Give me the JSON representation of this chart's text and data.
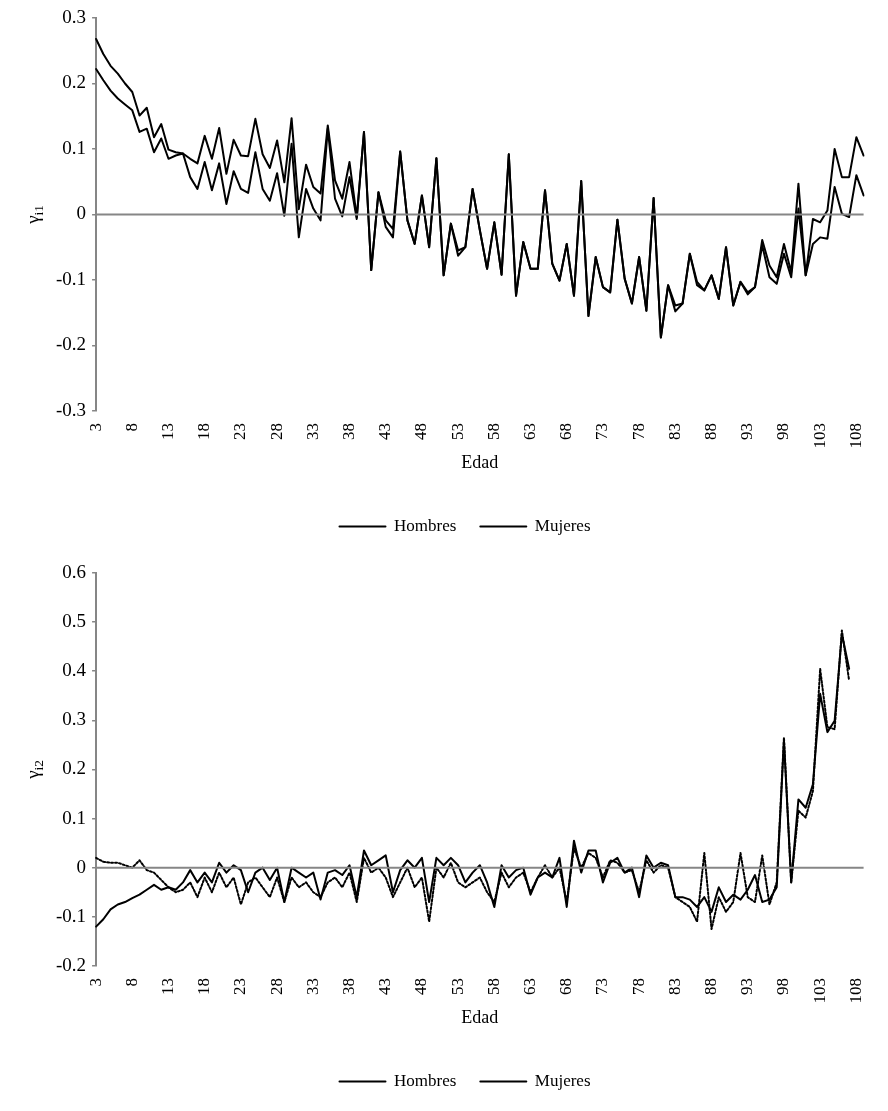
{
  "chart_data": [
    {
      "type": "line",
      "ylabel": "γ$_{i1}$",
      "xlabel": "Edad",
      "legend": "bottom",
      "grid": false,
      "ref_lines": [
        {
          "axis": "y",
          "value": 0,
          "color": "#868686"
        }
      ],
      "ylim": [
        -0.3,
        0.3
      ],
      "yticks": [
        -0.3,
        -0.2,
        -0.1,
        0,
        0.1,
        0.2,
        0.3
      ],
      "categories": [
        "3",
        null,
        null,
        null,
        null,
        "8",
        null,
        null,
        null,
        null,
        "13",
        null,
        null,
        null,
        null,
        "18",
        null,
        null,
        null,
        null,
        "23",
        null,
        null,
        null,
        null,
        "28",
        null,
        null,
        null,
        null,
        "33",
        null,
        null,
        null,
        null,
        "38",
        null,
        null,
        null,
        null,
        "43",
        null,
        null,
        null,
        null,
        "48",
        null,
        null,
        null,
        null,
        "53",
        null,
        null,
        null,
        null,
        "58",
        null,
        null,
        null,
        null,
        "63",
        null,
        null,
        null,
        null,
        "68",
        null,
        null,
        null,
        null,
        "73",
        null,
        null,
        null,
        null,
        "78",
        null,
        null,
        null,
        null,
        "83",
        null,
        null,
        null,
        null,
        "88",
        null,
        null,
        null,
        null,
        "93",
        null,
        null,
        null,
        null,
        "98",
        null,
        null,
        null,
        null,
        "103",
        null,
        null,
        null,
        null,
        "108",
        null
      ],
      "series": [
        {
          "name": "Hombres",
          "color": "#000000",
          "values": [
            0.268,
            0.245,
            0.227,
            0.215,
            0.2,
            0.187,
            0.151,
            0.163,
            0.118,
            0.138,
            0.099,
            0.095,
            0.093,
            0.085,
            0.078,
            0.12,
            0.085,
            0.132,
            0.062,
            0.114,
            0.09,
            0.089,
            0.146,
            0.092,
            0.071,
            0.113,
            0.049,
            0.147,
            0.008,
            0.076,
            0.042,
            0.032,
            0.136,
            0.052,
            0.024,
            0.08,
            -0.004,
            0.126,
            -0.085,
            0.034,
            -0.009,
            -0.022,
            0.096,
            -0.009,
            -0.045,
            0.029,
            -0.05,
            0.086,
            -0.093,
            -0.014,
            -0.055,
            -0.05,
            0.039,
            -0.024,
            -0.083,
            -0.012,
            -0.092,
            0.092,
            -0.124,
            -0.042,
            -0.083,
            -0.083,
            0.037,
            -0.075,
            -0.101,
            -0.045,
            -0.124,
            0.051,
            -0.155,
            -0.065,
            -0.111,
            -0.119,
            -0.008,
            -0.098,
            -0.136,
            -0.065,
            -0.147,
            0.025,
            -0.188,
            -0.108,
            -0.139,
            -0.136,
            -0.06,
            -0.103,
            -0.116,
            -0.093,
            -0.129,
            -0.05,
            -0.139,
            -0.103,
            -0.119,
            -0.111,
            -0.039,
            -0.078,
            -0.096,
            -0.045,
            -0.088,
            0.047,
            -0.093,
            -0.007,
            -0.012,
            0.006,
            0.1,
            0.057,
            0.057,
            0.118,
            0.09
          ]
        },
        {
          "name": "Mujeres",
          "color": "#000000",
          "values": [
            0.222,
            0.205,
            0.189,
            0.177,
            0.168,
            0.159,
            0.126,
            0.131,
            0.095,
            0.116,
            0.085,
            0.09,
            0.093,
            0.057,
            0.039,
            0.08,
            0.037,
            0.078,
            0.016,
            0.066,
            0.039,
            0.033,
            0.095,
            0.039,
            0.021,
            0.063,
            -0.002,
            0.108,
            -0.035,
            0.039,
            0.009,
            -0.009,
            0.131,
            0.024,
            -0.003,
            0.057,
            -0.007,
            0.126,
            -0.085,
            0.034,
            -0.019,
            -0.035,
            0.096,
            -0.009,
            -0.045,
            0.029,
            -0.05,
            0.086,
            -0.093,
            -0.014,
            -0.063,
            -0.05,
            0.039,
            -0.024,
            -0.083,
            -0.012,
            -0.092,
            0.092,
            -0.124,
            -0.042,
            -0.083,
            -0.083,
            0.037,
            -0.075,
            -0.101,
            -0.045,
            -0.124,
            0.051,
            -0.155,
            -0.065,
            -0.111,
            -0.119,
            -0.008,
            -0.098,
            -0.136,
            -0.065,
            -0.147,
            0.025,
            -0.188,
            -0.108,
            -0.148,
            -0.136,
            -0.06,
            -0.108,
            -0.116,
            -0.093,
            -0.129,
            -0.05,
            -0.139,
            -0.103,
            -0.122,
            -0.111,
            -0.047,
            -0.096,
            -0.106,
            -0.06,
            -0.096,
            0.009,
            -0.093,
            -0.045,
            -0.035,
            -0.037,
            0.042,
            0.001,
            -0.004,
            0.06,
            0.029
          ]
        }
      ]
    },
    {
      "type": "line",
      "ylabel": "γ$_{i2}$",
      "xlabel": "Edad",
      "legend": "bottom",
      "grid": false,
      "ref_lines": [
        {
          "axis": "y",
          "value": 0,
          "color": "#868686"
        }
      ],
      "ylim": [
        -0.2,
        0.6
      ],
      "yticks": [
        -0.2,
        -0.1,
        0,
        0.1,
        0.2,
        0.3,
        0.4,
        0.5,
        0.6
      ],
      "categories": [
        "3",
        null,
        null,
        null,
        null,
        "8",
        null,
        null,
        null,
        null,
        "13",
        null,
        null,
        null,
        null,
        "18",
        null,
        null,
        null,
        null,
        "23",
        null,
        null,
        null,
        null,
        "28",
        null,
        null,
        null,
        null,
        "33",
        null,
        null,
        null,
        null,
        "38",
        null,
        null,
        null,
        null,
        "43",
        null,
        null,
        null,
        null,
        "48",
        null,
        null,
        null,
        null,
        "53",
        null,
        null,
        null,
        null,
        "58",
        null,
        null,
        null,
        null,
        "63",
        null,
        null,
        null,
        null,
        "68",
        null,
        null,
        null,
        null,
        "73",
        null,
        null,
        null,
        null,
        "78",
        null,
        null,
        null,
        null,
        "83",
        null,
        null,
        null,
        null,
        "88",
        null,
        null,
        null,
        null,
        "93",
        null,
        null,
        null,
        null,
        "98",
        null,
        null,
        null,
        null,
        "103",
        null,
        null,
        null,
        null,
        "108",
        null
      ],
      "series": [
        {
          "name": "Hombres",
          "color": "#000000",
          "values": [
            -0.12,
            -0.105,
            -0.085,
            -0.075,
            -0.07,
            -0.062,
            -0.055,
            -0.045,
            -0.035,
            -0.045,
            -0.04,
            -0.045,
            -0.03,
            -0.005,
            -0.03,
            -0.01,
            -0.03,
            0.01,
            -0.01,
            0.005,
            -0.005,
            -0.05,
            -0.01,
            0,
            -0.025,
            0,
            -0.07,
            0,
            -0.01,
            -0.02,
            -0.01,
            -0.065,
            -0.01,
            -0.005,
            -0.015,
            0.005,
            -0.06,
            0.035,
            0.005,
            0.015,
            0.025,
            -0.05,
            -0.005,
            0.015,
            0,
            0.02,
            -0.07,
            0.02,
            0.005,
            0.02,
            0.005,
            -0.03,
            -0.01,
            0.005,
            -0.03,
            -0.08,
            0.005,
            -0.02,
            -0.005,
            0,
            -0.055,
            -0.02,
            -0.01,
            -0.02,
            0.02,
            -0.08,
            0.055,
            -0.01,
            0.035,
            0.035,
            -0.03,
            0.01,
            0.02,
            -0.01,
            0,
            -0.06,
            0.025,
            0,
            0.01,
            0.005,
            -0.06,
            -0.06,
            -0.065,
            -0.08,
            -0.06,
            -0.09,
            -0.04,
            -0.07,
            -0.055,
            -0.065,
            -0.045,
            -0.015,
            -0.07,
            -0.065,
            -0.04,
            0.259,
            -0.03,
            0.139,
            0.122,
            0.17,
            0.354,
            0.276,
            0.299,
            0.476,
            0.405,
            null,
            null
          ]
        },
        {
          "name": "Mujeres",
          "color": "#000000",
          "line_style": "dotted",
          "values": [
            0.02,
            0.012,
            0.01,
            0.01,
            0.005,
            0,
            0.015,
            -0.005,
            -0.01,
            -0.025,
            -0.04,
            -0.05,
            -0.045,
            -0.03,
            -0.06,
            -0.02,
            -0.05,
            -0.01,
            -0.04,
            -0.02,
            -0.075,
            -0.03,
            -0.02,
            -0.04,
            -0.06,
            -0.02,
            -0.07,
            -0.02,
            -0.04,
            -0.03,
            -0.05,
            -0.06,
            -0.03,
            -0.02,
            -0.04,
            -0.01,
            -0.07,
            0.02,
            -0.01,
            0,
            -0.02,
            -0.06,
            -0.03,
            0,
            -0.04,
            -0.02,
            -0.11,
            0,
            -0.02,
            0.01,
            -0.03,
            -0.04,
            -0.03,
            -0.02,
            -0.05,
            -0.07,
            -0.01,
            -0.04,
            -0.02,
            -0.01,
            -0.05,
            -0.02,
            0.005,
            -0.02,
            0,
            -0.07,
            0.04,
            0,
            0.03,
            0.02,
            -0.02,
            0.015,
            0.01,
            -0.01,
            -0.005,
            -0.05,
            0.015,
            -0.01,
            0.005,
            0,
            -0.06,
            -0.07,
            -0.08,
            -0.11,
            0.03,
            -0.125,
            -0.06,
            -0.09,
            -0.07,
            0.03,
            -0.06,
            -0.07,
            0.025,
            -0.075,
            -0.03,
            0.265,
            -0.03,
            0.116,
            0.102,
            0.156,
            0.405,
            0.286,
            0.282,
            0.483,
            0.381,
            null,
            null
          ]
        }
      ]
    }
  ]
}
